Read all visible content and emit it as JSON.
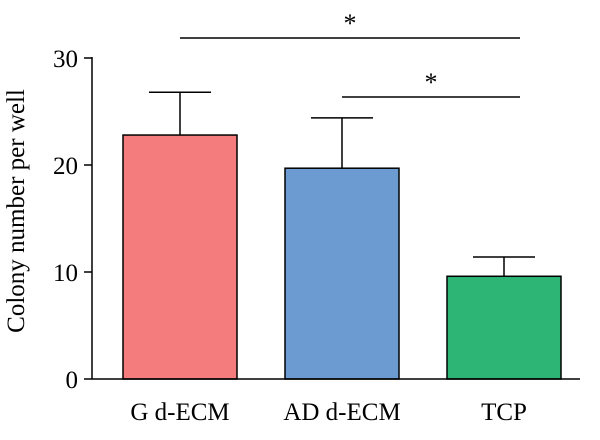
{
  "chart_data": {
    "type": "bar",
    "categories": [
      "G d-ECM",
      "AD d-ECM",
      "TCP"
    ],
    "values": [
      22.8,
      19.7,
      9.6
    ],
    "errors": [
      4.0,
      4.7,
      1.8
    ],
    "colors": [
      "#f47c7c",
      "#6b9bd1",
      "#2cb574"
    ],
    "title": "",
    "xlabel": "",
    "ylabel": "Colony number per well",
    "ylim": [
      0,
      30
    ],
    "yticks": [
      0,
      10,
      20,
      30
    ],
    "ytick_labels": [
      "0",
      "10",
      "20",
      "30"
    ],
    "grid": false,
    "significance": [
      {
        "from": "G d-ECM",
        "to": "TCP",
        "label": "*"
      },
      {
        "from": "AD d-ECM",
        "to": "TCP",
        "label": "*"
      }
    ]
  }
}
